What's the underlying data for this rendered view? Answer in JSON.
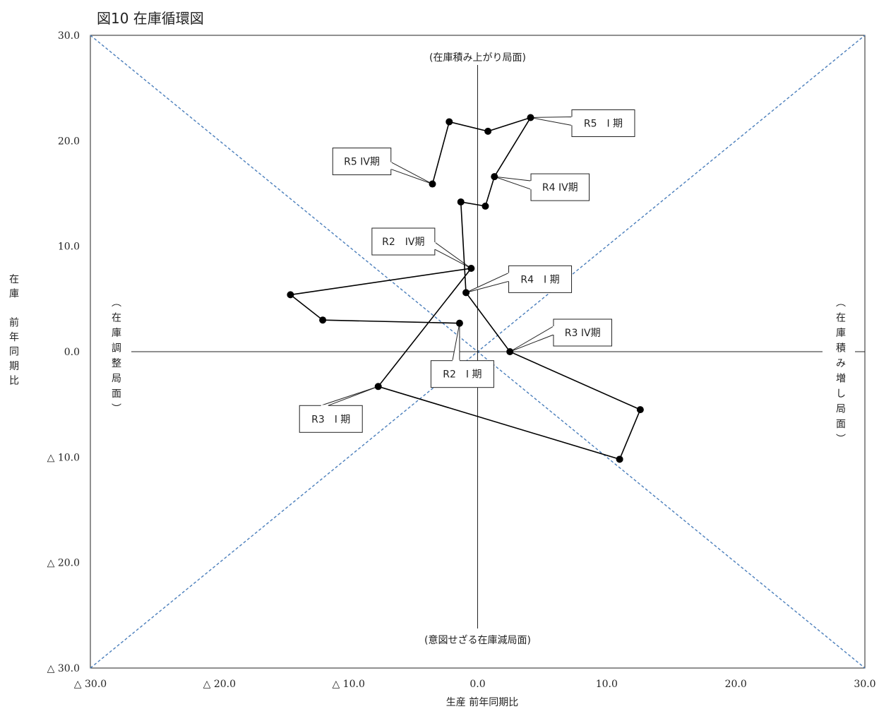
{
  "chart_data": {
    "type": "line",
    "title": "図10 在庫循環図",
    "xlabel": "生産 前年同期比",
    "ylabel": "在庫　前年同期比",
    "xlim": [
      -30,
      30
    ],
    "ylim": [
      -30,
      30
    ],
    "x_ticks": [
      {
        "value": -30,
        "label": "△ 30.0"
      },
      {
        "value": -20,
        "label": "△ 20.0"
      },
      {
        "value": -10,
        "label": "△ 10.0"
      },
      {
        "value": 0,
        "label": "0.0"
      },
      {
        "value": 10,
        "label": "10.0"
      },
      {
        "value": 20,
        "label": "20.0"
      },
      {
        "value": 30,
        "label": "30.0"
      }
    ],
    "y_ticks": [
      {
        "value": 30,
        "label": "30.0"
      },
      {
        "value": 20,
        "label": "20.0"
      },
      {
        "value": 10,
        "label": "10.0"
      },
      {
        "value": 0,
        "label": "0.0"
      },
      {
        "value": -10,
        "label": "△ 10.0"
      },
      {
        "value": -20,
        "label": "△ 20.0"
      },
      {
        "value": -30,
        "label": "△ 30.0"
      }
    ],
    "grid": false,
    "legend": "none",
    "reference_lines": [
      "y = x",
      "y = -x"
    ],
    "reference_line_color": "#4a7ebb",
    "line_color": "#000000",
    "regions": {
      "top": "(在庫積み上がり局面)",
      "bottom": "(意図せざる在庫減局面)",
      "left": "(在庫調整局面)",
      "right": "(在庫積み増し局面)"
    },
    "points": [
      {
        "x": -1.4,
        "y": 2.7,
        "label": "R2　I 期"
      },
      {
        "x": -12.0,
        "y": 3.0
      },
      {
        "x": -14.5,
        "y": 5.4
      },
      {
        "x": -0.5,
        "y": 7.9,
        "label": "R2　IV期"
      },
      {
        "x": -7.7,
        "y": -3.3,
        "label": "R3　I 期"
      },
      {
        "x": 11.0,
        "y": -10.2
      },
      {
        "x": 12.6,
        "y": -5.5
      },
      {
        "x": 2.5,
        "y": 0.0,
        "label": "R3 IV期"
      },
      {
        "x": -0.9,
        "y": 5.6,
        "label": "R4　I 期"
      },
      {
        "x": -1.3,
        "y": 14.2
      },
      {
        "x": 0.6,
        "y": 13.8
      },
      {
        "x": 1.3,
        "y": 16.6,
        "label": "R4 IV期"
      },
      {
        "x": 4.1,
        "y": 22.2,
        "label": "R5　I 期"
      },
      {
        "x": 0.8,
        "y": 20.9
      },
      {
        "x": -2.2,
        "y": 21.8
      },
      {
        "x": -3.5,
        "y": 15.9,
        "label": "R5 IV期"
      }
    ]
  }
}
